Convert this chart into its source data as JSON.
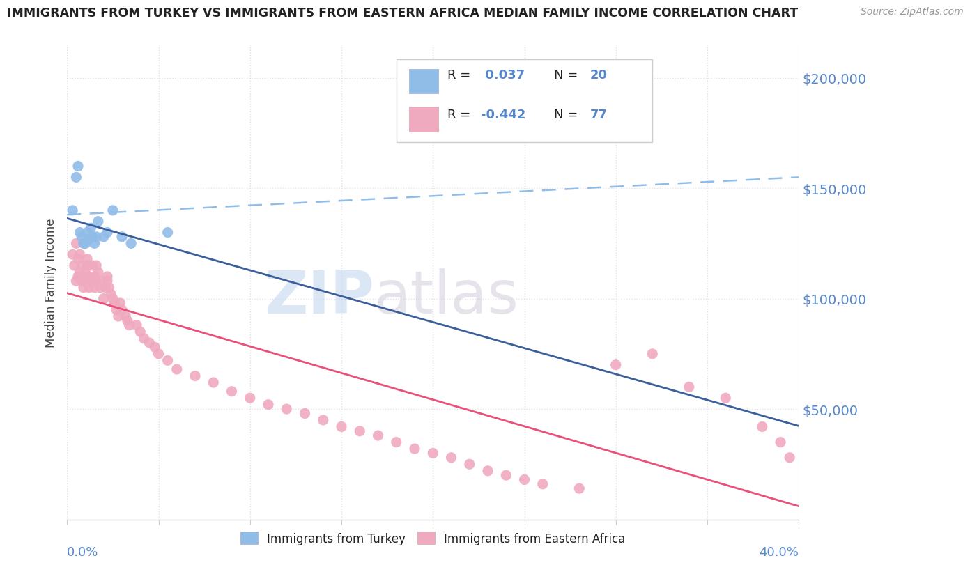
{
  "title": "IMMIGRANTS FROM TURKEY VS IMMIGRANTS FROM EASTERN AFRICA MEDIAN FAMILY INCOME CORRELATION CHART",
  "source": "Source: ZipAtlas.com",
  "ylabel": "Median Family Income",
  "watermark_zip": "ZIP",
  "watermark_atlas": "atlas",
  "legend_r1": "R =  0.037",
  "legend_n1": "N = 20",
  "legend_r2": "R = -0.442",
  "legend_n2": "N = 77",
  "ytick_labels": [
    "$50,000",
    "$100,000",
    "$150,000",
    "$200,000"
  ],
  "ytick_values": [
    50000,
    100000,
    150000,
    200000
  ],
  "xlim": [
    0.0,
    0.4
  ],
  "ylim": [
    0,
    215000
  ],
  "turkey_color": "#90bce8",
  "turkey_edge": "none",
  "africa_color": "#f0aac0",
  "africa_edge": "none",
  "trend_turkey_color": "#3a5f9a",
  "trend_africa_color": "#e8507a",
  "dashed_line_color": "#90bce8",
  "background_color": "#ffffff",
  "grid_color": "#e0e0e8",
  "title_color": "#222222",
  "source_color": "#999999",
  "axis_label_color": "#5588cc",
  "turkey_scatter_x": [
    0.003,
    0.005,
    0.006,
    0.007,
    0.008,
    0.009,
    0.01,
    0.011,
    0.012,
    0.013,
    0.014,
    0.015,
    0.016,
    0.017,
    0.02,
    0.022,
    0.025,
    0.03,
    0.035,
    0.055
  ],
  "turkey_scatter_y": [
    140000,
    155000,
    160000,
    130000,
    128000,
    125000,
    125000,
    130000,
    127000,
    132000,
    128000,
    125000,
    128000,
    135000,
    128000,
    130000,
    140000,
    128000,
    125000,
    130000
  ],
  "africa_scatter_x": [
    0.003,
    0.004,
    0.005,
    0.005,
    0.006,
    0.006,
    0.007,
    0.007,
    0.008,
    0.008,
    0.009,
    0.01,
    0.01,
    0.011,
    0.011,
    0.012,
    0.012,
    0.013,
    0.014,
    0.015,
    0.015,
    0.016,
    0.016,
    0.017,
    0.018,
    0.019,
    0.02,
    0.021,
    0.022,
    0.022,
    0.023,
    0.024,
    0.025,
    0.026,
    0.027,
    0.028,
    0.029,
    0.03,
    0.032,
    0.033,
    0.034,
    0.038,
    0.04,
    0.042,
    0.045,
    0.048,
    0.05,
    0.055,
    0.06,
    0.07,
    0.08,
    0.09,
    0.1,
    0.11,
    0.12,
    0.13,
    0.14,
    0.15,
    0.16,
    0.17,
    0.18,
    0.19,
    0.2,
    0.21,
    0.22,
    0.23,
    0.24,
    0.25,
    0.26,
    0.28,
    0.3,
    0.32,
    0.34,
    0.36,
    0.38,
    0.39,
    0.395
  ],
  "africa_scatter_y": [
    120000,
    115000,
    108000,
    125000,
    118000,
    110000,
    112000,
    120000,
    108000,
    115000,
    105000,
    112000,
    108000,
    118000,
    115000,
    105000,
    110000,
    108000,
    115000,
    105000,
    110000,
    108000,
    115000,
    112000,
    105000,
    108000,
    100000,
    105000,
    110000,
    108000,
    105000,
    102000,
    100000,
    98000,
    95000,
    92000,
    98000,
    95000,
    92000,
    90000,
    88000,
    88000,
    85000,
    82000,
    80000,
    78000,
    75000,
    72000,
    68000,
    65000,
    62000,
    58000,
    55000,
    52000,
    50000,
    48000,
    45000,
    42000,
    40000,
    38000,
    35000,
    32000,
    30000,
    28000,
    25000,
    22000,
    20000,
    18000,
    16000,
    14000,
    70000,
    75000,
    60000,
    55000,
    42000,
    35000,
    28000
  ]
}
